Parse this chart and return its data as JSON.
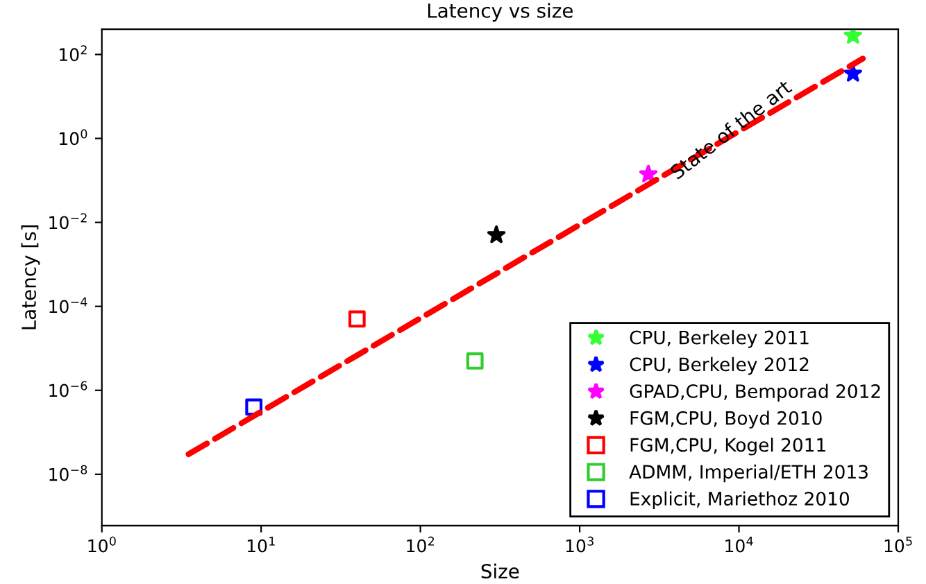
{
  "chart_data": {
    "type": "scatter",
    "title": "Latency vs size",
    "xlabel": "Size",
    "ylabel": "Latency [s]",
    "log": "xy",
    "grid": false,
    "legend": "bottom right",
    "xlim": [
      1,
      100000
    ],
    "ylim": [
      6e-10,
      400
    ],
    "xticks": [
      {
        "value": 1,
        "label": "10$^{0}$"
      },
      {
        "value": 10,
        "label": "10$^{1}$"
      },
      {
        "value": 100,
        "label": "10$^{2}$"
      },
      {
        "value": 1000,
        "label": "10$^{3}$"
      },
      {
        "value": 10000,
        "label": "10$^{4}$"
      },
      {
        "value": 100000,
        "label": "10$^{5}$"
      }
    ],
    "yticks": [
      {
        "value": 1e-08,
        "label": "10$^{−8}$"
      },
      {
        "value": 1e-06,
        "label": "10$^{−6}$"
      },
      {
        "value": 0.0001,
        "label": "10$^{−4}$"
      },
      {
        "value": 0.01,
        "label": "10$^{−2}$"
      },
      {
        "value": 1,
        "label": "10$^{0}$"
      },
      {
        "value": 100,
        "label": "10$^{2}$"
      }
    ],
    "series": [
      {
        "type": "line",
        "color": "#ff0000",
        "line_style": "dashed",
        "marker": "none",
        "x": [
          3.5,
          60000
        ],
        "values": [
          3e-08,
          80
        ]
      },
      {
        "name": "CPU, Berkeley 2011",
        "color": "#33ff33",
        "marker": "star",
        "x": [
          52000
        ],
        "values": [
          280
        ]
      },
      {
        "name": "CPU, Berkeley 2012",
        "color": "#0000ff",
        "marker": "star",
        "x": [
          52000
        ],
        "values": [
          35
        ]
      },
      {
        "name": "GPAD,CPU, Bemporad 2012",
        "color": "#ff00ff",
        "marker": "star",
        "x": [
          2700
        ],
        "values": [
          0.14
        ]
      },
      {
        "name": "FGM,CPU, Boyd 2010",
        "color": "#000000",
        "marker": "star",
        "x": [
          300
        ],
        "values": [
          0.005
        ]
      },
      {
        "name": "FGM,CPU, Kogel 2011",
        "color": "#ff0000",
        "marker": "square",
        "x": [
          40
        ],
        "values": [
          5e-05
        ]
      },
      {
        "name": "ADMM, Imperial/ETH 2013",
        "color": "#33cc33",
        "marker": "square",
        "x": [
          220
        ],
        "values": [
          5e-06
        ]
      },
      {
        "name": "Explicit, Mariethoz 2010",
        "color": "#0000ff",
        "marker": "square",
        "x": [
          9
        ],
        "values": [
          4e-07
        ]
      }
    ],
    "annotations": [
      {
        "text": "State of the art",
        "x": 9000,
        "y": 1.5
      }
    ]
  }
}
